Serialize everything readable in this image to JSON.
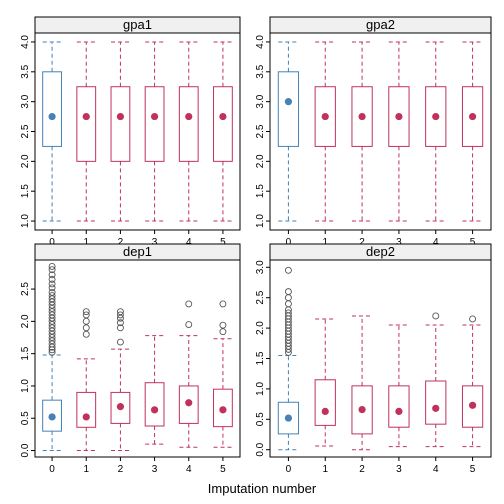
{
  "chart_data": [
    {
      "type": "boxplot",
      "title": "gpa1",
      "categories": [
        "0",
        "1",
        "2",
        "3",
        "4",
        "5"
      ],
      "ylim": [
        0.85,
        4.15
      ],
      "yticks": [
        1.0,
        1.5,
        2.0,
        2.5,
        3.0,
        3.5,
        4.0
      ],
      "ytick_labels": [
        "1.0",
        "1.5",
        "2.0",
        "2.5",
        "3.0",
        "3.5",
        "4.0"
      ],
      "boxes": [
        {
          "category": "0",
          "whisker_low": 1.0,
          "q1": 2.25,
          "median": 2.75,
          "q3": 3.5,
          "whisker_high": 4.0,
          "outliers": [],
          "color": "#4682b4"
        },
        {
          "category": "1",
          "whisker_low": 1.0,
          "q1": 2.0,
          "median": 2.75,
          "q3": 3.25,
          "whisker_high": 4.0,
          "outliers": [],
          "color": "#c0325c"
        },
        {
          "category": "2",
          "whisker_low": 1.0,
          "q1": 2.0,
          "median": 2.75,
          "q3": 3.25,
          "whisker_high": 4.0,
          "outliers": [],
          "color": "#c0325c"
        },
        {
          "category": "3",
          "whisker_low": 1.0,
          "q1": 2.0,
          "median": 2.75,
          "q3": 3.25,
          "whisker_high": 4.0,
          "outliers": [],
          "color": "#c0325c"
        },
        {
          "category": "4",
          "whisker_low": 1.0,
          "q1": 2.0,
          "median": 2.75,
          "q3": 3.25,
          "whisker_high": 4.0,
          "outliers": [],
          "color": "#c0325c"
        },
        {
          "category": "5",
          "whisker_low": 1.0,
          "q1": 2.0,
          "median": 2.75,
          "q3": 3.25,
          "whisker_high": 4.0,
          "outliers": [],
          "color": "#c0325c"
        }
      ]
    },
    {
      "type": "boxplot",
      "title": "gpa2",
      "categories": [
        "0",
        "1",
        "2",
        "3",
        "4",
        "5"
      ],
      "ylim": [
        0.85,
        4.15
      ],
      "yticks": [
        1.0,
        1.5,
        2.0,
        2.5,
        3.0,
        3.5,
        4.0
      ],
      "ytick_labels": [
        "1.0",
        "1.5",
        "2.0",
        "2.5",
        "3.0",
        "3.5",
        "4.0"
      ],
      "boxes": [
        {
          "category": "0",
          "whisker_low": 1.0,
          "q1": 2.25,
          "median": 3.0,
          "q3": 3.5,
          "whisker_high": 4.0,
          "outliers": [],
          "color": "#4682b4"
        },
        {
          "category": "1",
          "whisker_low": 1.0,
          "q1": 2.25,
          "median": 2.75,
          "q3": 3.25,
          "whisker_high": 4.0,
          "outliers": [],
          "color": "#c0325c"
        },
        {
          "category": "2",
          "whisker_low": 1.0,
          "q1": 2.25,
          "median": 2.75,
          "q3": 3.25,
          "whisker_high": 4.0,
          "outliers": [],
          "color": "#c0325c"
        },
        {
          "category": "3",
          "whisker_low": 1.0,
          "q1": 2.25,
          "median": 2.75,
          "q3": 3.25,
          "whisker_high": 4.0,
          "outliers": [],
          "color": "#c0325c"
        },
        {
          "category": "4",
          "whisker_low": 1.0,
          "q1": 2.25,
          "median": 2.75,
          "q3": 3.25,
          "whisker_high": 4.0,
          "outliers": [],
          "color": "#c0325c"
        },
        {
          "category": "5",
          "whisker_low": 1.0,
          "q1": 2.25,
          "median": 2.75,
          "q3": 3.25,
          "whisker_high": 4.0,
          "outliers": [],
          "color": "#c0325c"
        }
      ]
    },
    {
      "type": "boxplot",
      "title": "dep1",
      "categories": [
        "0",
        "1",
        "2",
        "3",
        "4",
        "5"
      ],
      "ylim": [
        -0.1,
        2.95
      ],
      "yticks": [
        0.0,
        0.5,
        1.0,
        1.5,
        2.0,
        2.5
      ],
      "ytick_labels": [
        "0.0",
        "0.5",
        "1.0",
        "1.5",
        "2.0",
        "2.5"
      ],
      "boxes": [
        {
          "category": "0",
          "whisker_low": 0.0,
          "q1": 0.3,
          "median": 0.52,
          "q3": 0.78,
          "whisker_high": 1.48,
          "outliers": [
            1.52,
            1.56,
            1.6,
            1.65,
            1.7,
            1.75,
            1.8,
            1.85,
            1.9,
            1.95,
            2.0,
            2.05,
            2.1,
            2.15,
            2.2,
            2.25,
            2.3,
            2.35,
            2.4,
            2.45,
            2.52,
            2.58,
            2.65,
            2.72,
            2.8,
            2.85
          ],
          "color": "#4682b4"
        },
        {
          "category": "1",
          "whisker_low": 0.0,
          "q1": 0.36,
          "median": 0.52,
          "q3": 0.9,
          "whisker_high": 1.42,
          "outliers": [
            1.8,
            1.9,
            2.0,
            2.1,
            2.15
          ],
          "color": "#c0325c"
        },
        {
          "category": "2",
          "whisker_low": 0.0,
          "q1": 0.42,
          "median": 0.68,
          "q3": 0.9,
          "whisker_high": 1.57,
          "outliers": [
            1.68,
            1.9,
            1.98,
            2.05,
            2.1,
            2.15
          ],
          "color": "#c0325c"
        },
        {
          "category": "3",
          "whisker_low": 0.1,
          "q1": 0.38,
          "median": 0.63,
          "q3": 1.05,
          "whisker_high": 1.78,
          "outliers": [],
          "color": "#c0325c"
        },
        {
          "category": "4",
          "whisker_low": 0.05,
          "q1": 0.42,
          "median": 0.74,
          "q3": 1.0,
          "whisker_high": 1.78,
          "outliers": [
            1.95,
            2.27
          ],
          "color": "#c0325c"
        },
        {
          "category": "5",
          "whisker_low": 0.05,
          "q1": 0.37,
          "median": 0.63,
          "q3": 0.95,
          "whisker_high": 1.73,
          "outliers": [
            1.84,
            1.94,
            2.27
          ],
          "color": "#c0325c"
        }
      ]
    },
    {
      "type": "boxplot",
      "title": "dep2",
      "categories": [
        "0",
        "1",
        "2",
        "3",
        "4",
        "5"
      ],
      "ylim": [
        -0.12,
        3.12
      ],
      "yticks": [
        0.0,
        0.5,
        1.0,
        1.5,
        2.0,
        2.5,
        3.0
      ],
      "ytick_labels": [
        "0.0",
        "0.5",
        "1.0",
        "1.5",
        "2.0",
        "2.5",
        "3.0"
      ],
      "boxes": [
        {
          "category": "0",
          "whisker_low": 0.0,
          "q1": 0.26,
          "median": 0.52,
          "q3": 0.78,
          "whisker_high": 1.55,
          "outliers": [
            1.6,
            1.65,
            1.7,
            1.75,
            1.8,
            1.85,
            1.9,
            1.95,
            2.0,
            2.05,
            2.1,
            2.15,
            2.2,
            2.25,
            2.3,
            2.4,
            2.5,
            2.6,
            2.95
          ],
          "color": "#4682b4"
        },
        {
          "category": "1",
          "whisker_low": 0.06,
          "q1": 0.4,
          "median": 0.63,
          "q3": 1.15,
          "whisker_high": 2.15,
          "outliers": [],
          "color": "#c0325c"
        },
        {
          "category": "2",
          "whisker_low": 0.0,
          "q1": 0.26,
          "median": 0.66,
          "q3": 1.05,
          "whisker_high": 2.2,
          "outliers": [],
          "color": "#c0325c"
        },
        {
          "category": "3",
          "whisker_low": 0.05,
          "q1": 0.37,
          "median": 0.63,
          "q3": 1.05,
          "whisker_high": 2.05,
          "outliers": [],
          "color": "#c0325c"
        },
        {
          "category": "4",
          "whisker_low": 0.05,
          "q1": 0.42,
          "median": 0.68,
          "q3": 1.13,
          "whisker_high": 2.05,
          "outliers": [
            2.2
          ],
          "color": "#c0325c"
        },
        {
          "category": "5",
          "whisker_low": 0.05,
          "q1": 0.37,
          "median": 0.73,
          "q3": 1.05,
          "whisker_high": 2.05,
          "outliers": [
            2.15
          ],
          "color": "#c0325c"
        }
      ]
    }
  ],
  "xlabel": "Imputation number",
  "strip_color": "#f0f0f0"
}
